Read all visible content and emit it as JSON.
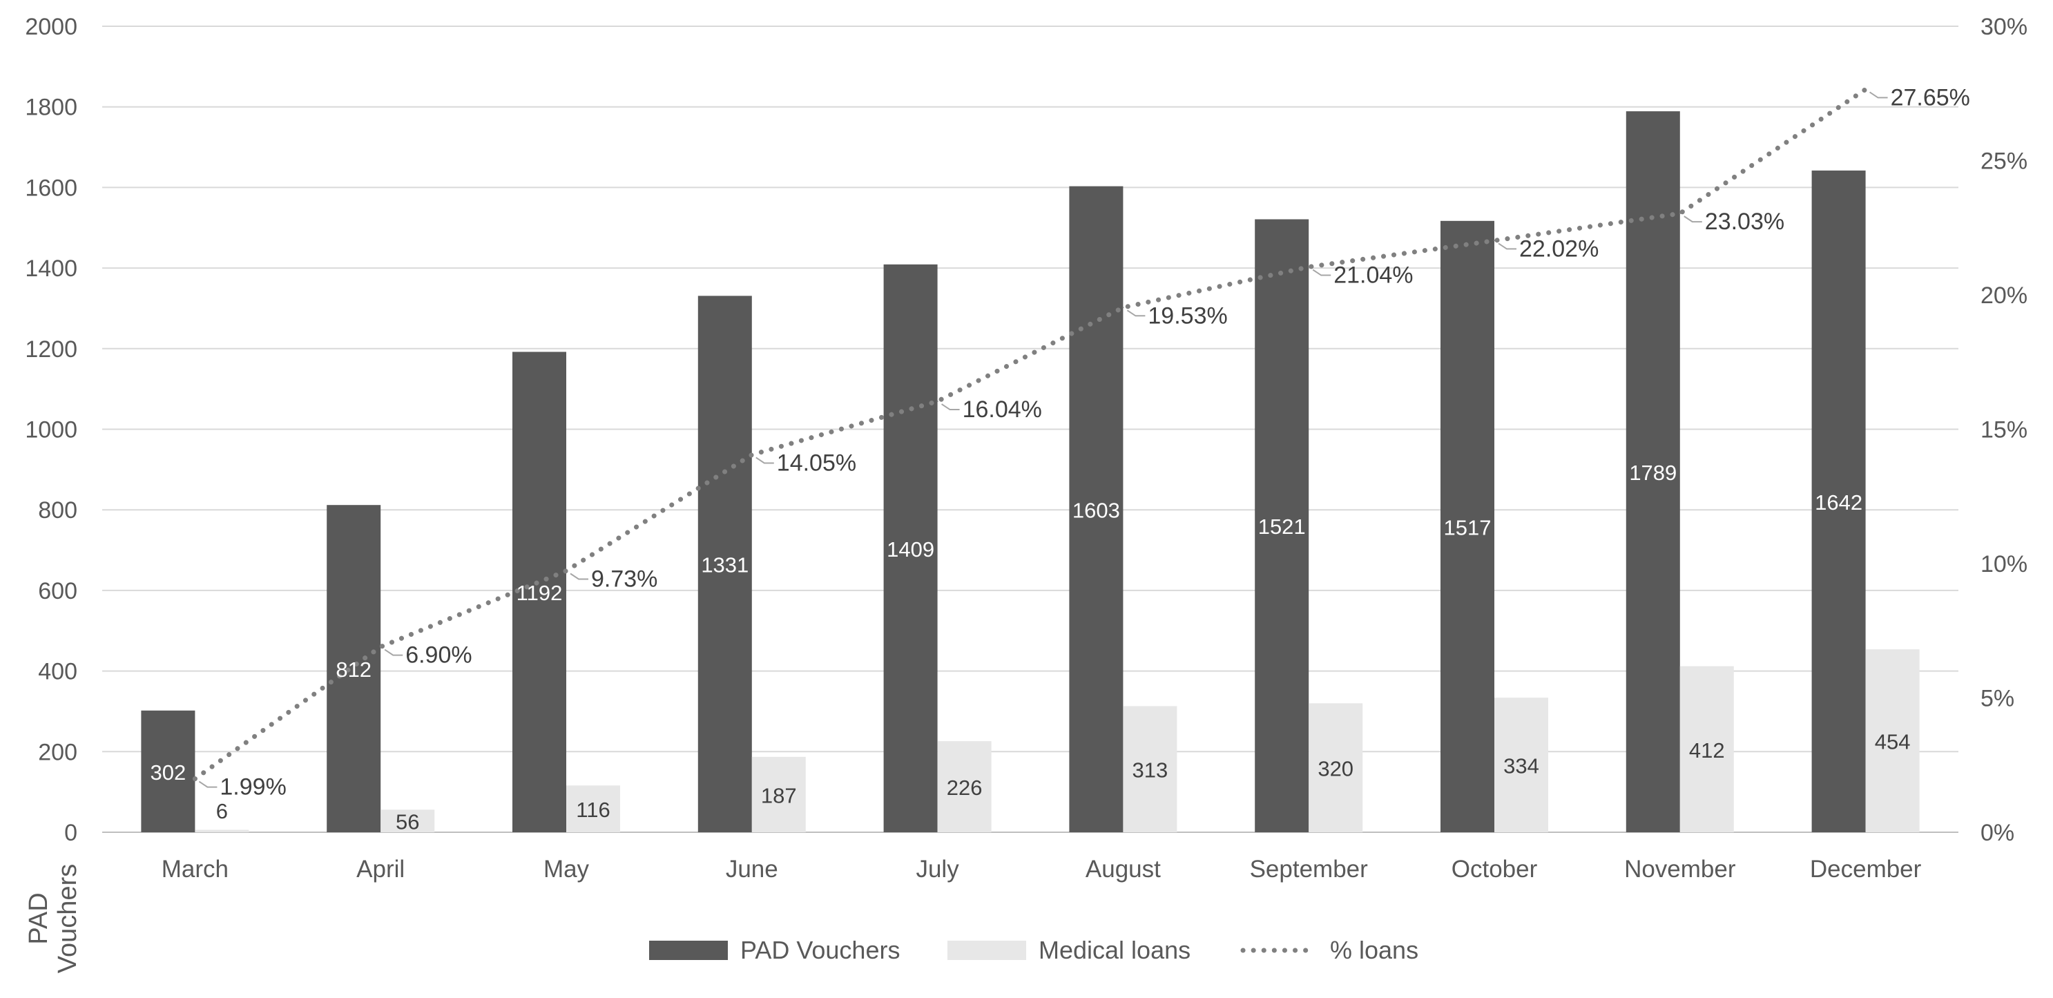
{
  "chart_data": {
    "type": "bar",
    "categories": [
      "March",
      "April",
      "May",
      "June",
      "July",
      "August",
      "September",
      "October",
      "November",
      "December"
    ],
    "series": [
      {
        "name": "PAD Vouchers",
        "kind": "bar",
        "axis": "left",
        "color": "#595959",
        "values": [
          302,
          812,
          1192,
          1331,
          1409,
          1603,
          1521,
          1517,
          1789,
          1642
        ],
        "labels": [
          "302",
          "812",
          "1192",
          "1331",
          "1409",
          "1603",
          "1521",
          "1517",
          "1789",
          "1642"
        ]
      },
      {
        "name": "Medical loans",
        "kind": "bar",
        "axis": "left",
        "color": "#e7e7e7",
        "values": [
          6,
          56,
          116,
          187,
          226,
          313,
          320,
          334,
          412,
          454
        ],
        "labels": [
          "6",
          "56",
          "116",
          "187",
          "226",
          "313",
          "320",
          "334",
          "412",
          "454"
        ]
      },
      {
        "name": "% loans",
        "kind": "line",
        "style": "dotted",
        "axis": "right",
        "color": "#808080",
        "values": [
          1.99,
          6.9,
          9.73,
          14.05,
          16.04,
          19.53,
          21.04,
          22.02,
          23.03,
          27.65
        ],
        "labels": [
          "1.99%",
          "6.90%",
          "9.73%",
          "14.05%",
          "16.04%",
          "19.53%",
          "21.04%",
          "22.02%",
          "23.03%",
          "27.65%"
        ]
      }
    ],
    "ylabel": "PAD\nVouchers",
    "ylim": [
      0,
      2000
    ],
    "yticks": [
      "0",
      "200",
      "400",
      "600",
      "800",
      "1000",
      "1200",
      "1400",
      "1600",
      "1800",
      "2000"
    ],
    "y2lim": [
      0,
      30
    ],
    "y2ticks": [
      "0%",
      "5%",
      "10%",
      "15%",
      "20%",
      "25%",
      "30%"
    ],
    "grid": true,
    "legend_position": "bottom"
  }
}
